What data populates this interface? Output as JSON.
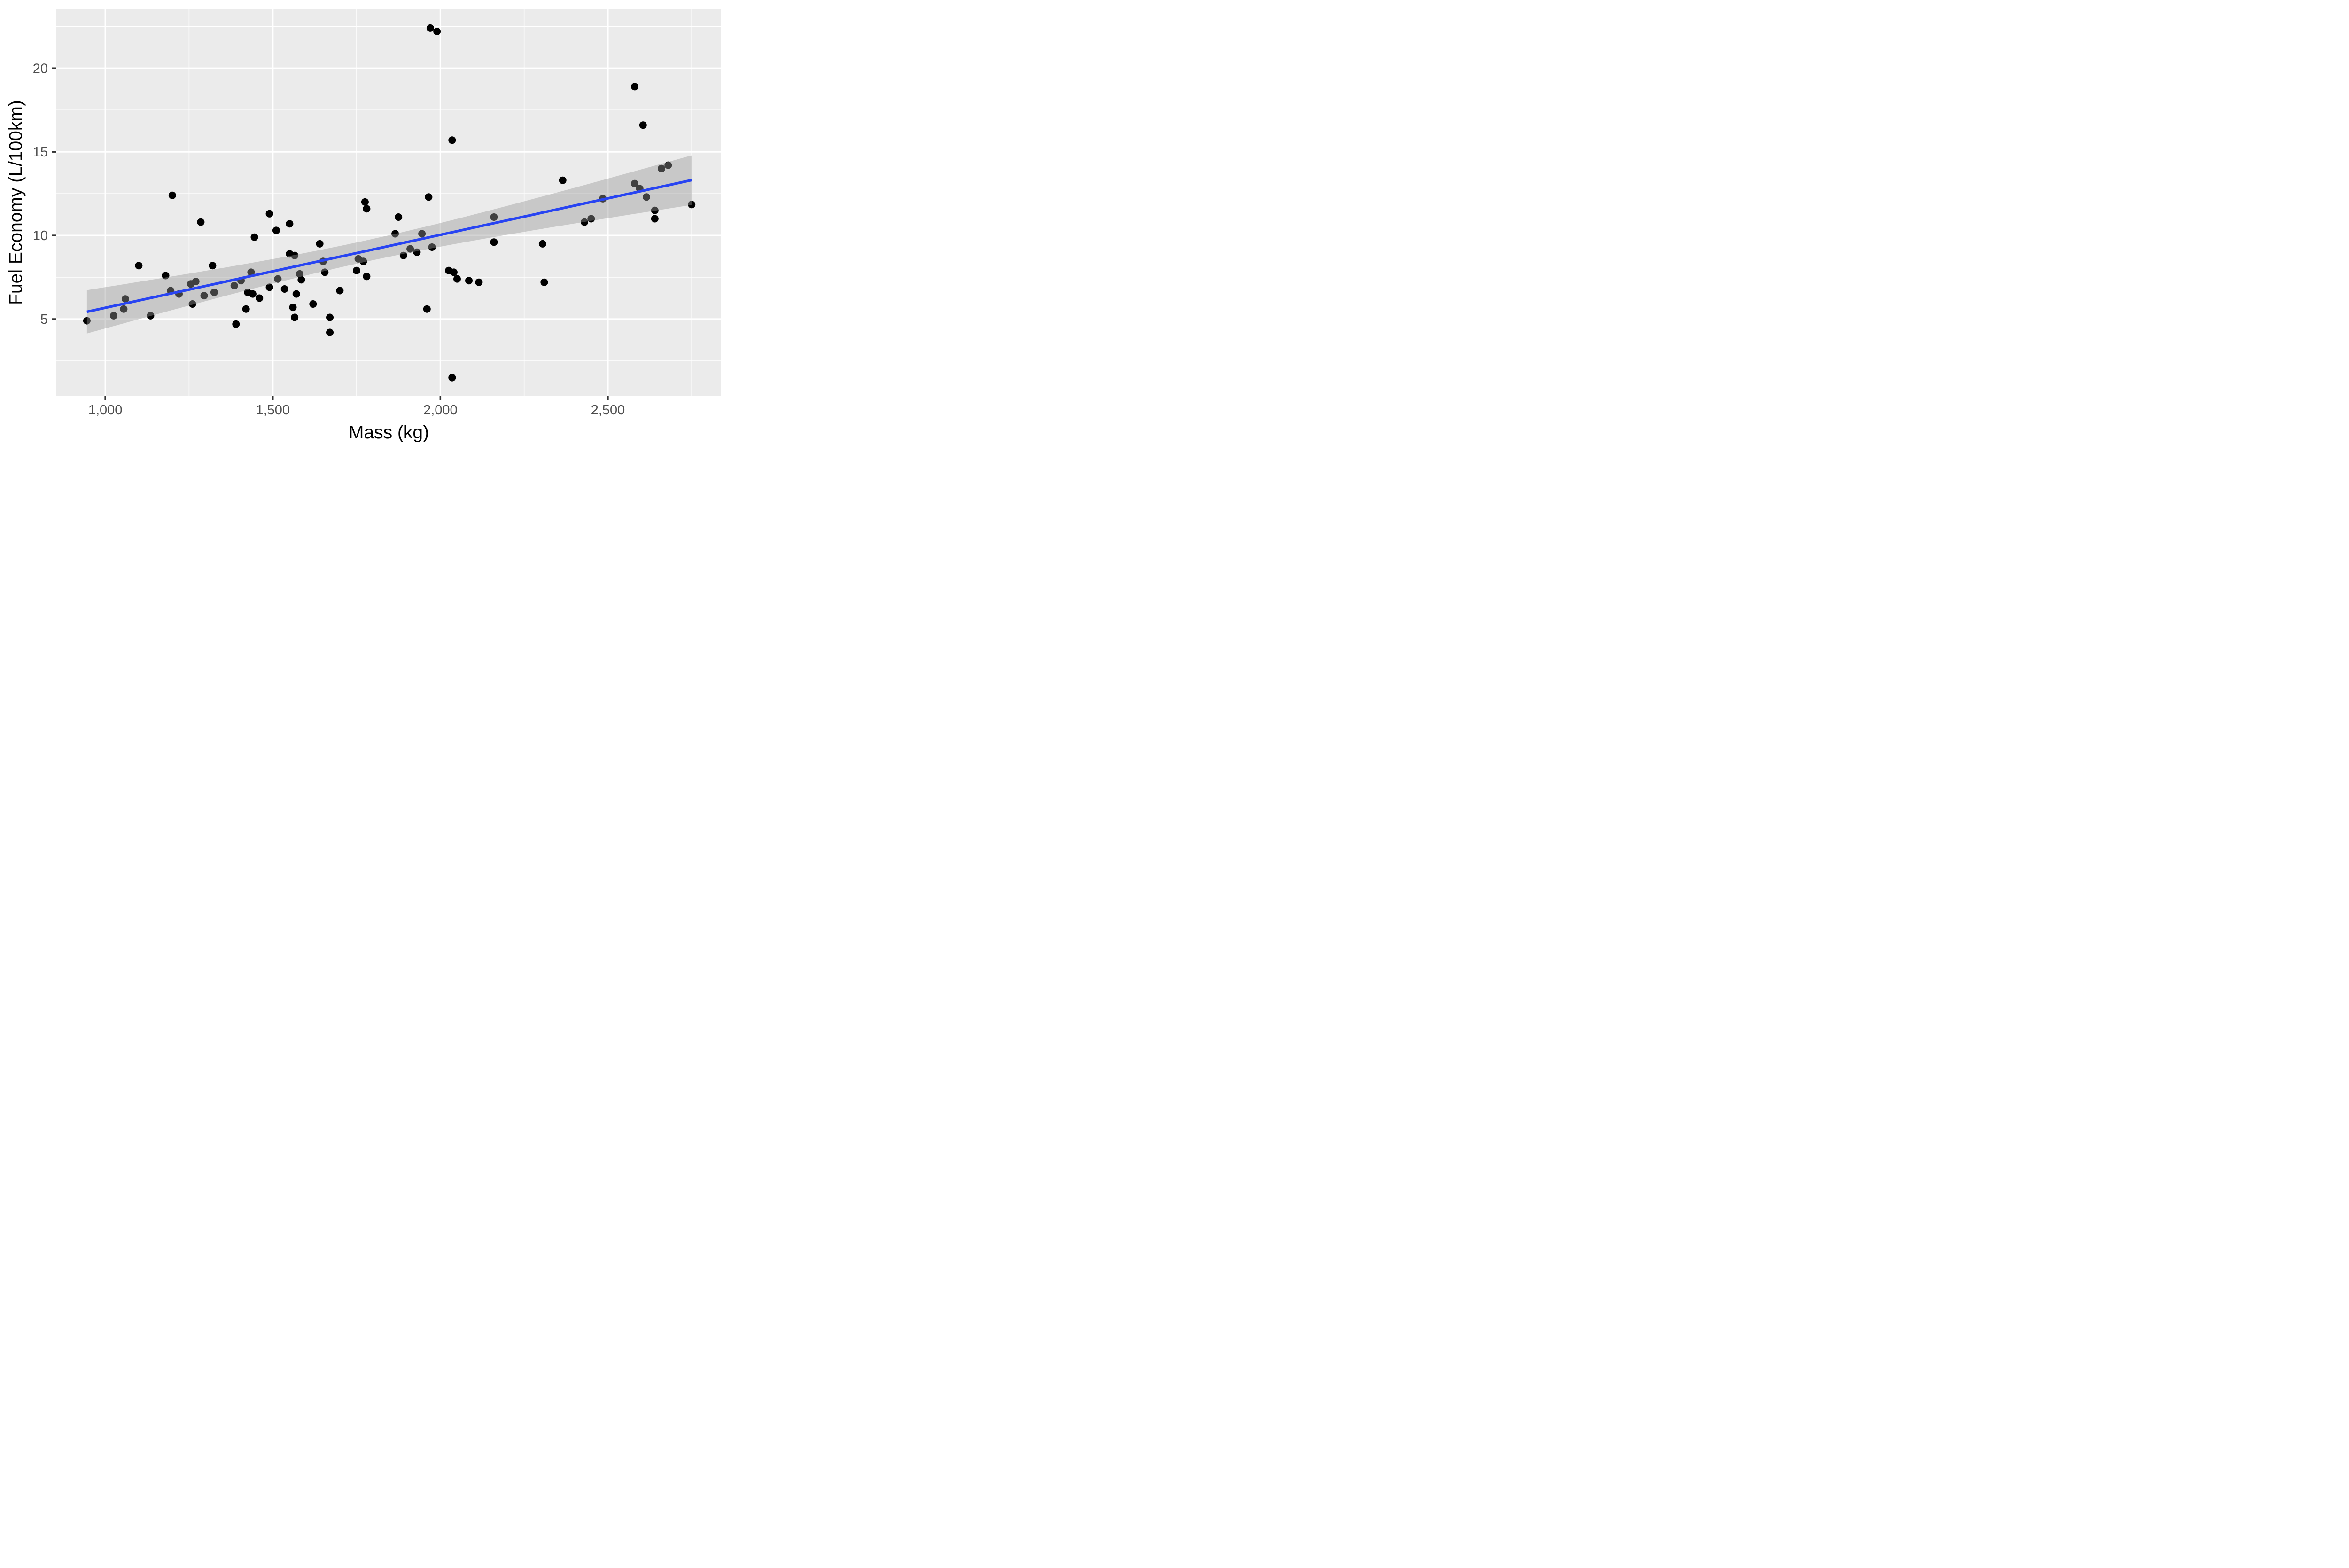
{
  "chart_data": {
    "type": "scatter",
    "title": "",
    "xlabel": "Mass (kg)",
    "ylabel": "Fuel Economy (L/100km)",
    "legend_position": "none",
    "grid": "major-minor-white-on-gray",
    "x_axis": {
      "lim": [
        854,
        2838
      ],
      "major_ticks": [
        {
          "v": 1000,
          "label": "1,000"
        },
        {
          "v": 1500,
          "label": "1,500"
        },
        {
          "v": 2000,
          "label": "2,000"
        },
        {
          "v": 2500,
          "label": "2,500"
        }
      ],
      "minor_ticks": [
        1250,
        1750,
        2250,
        2750
      ]
    },
    "y_axis": {
      "lim": [
        0.42,
        23.52
      ],
      "major_ticks": [
        {
          "v": 5,
          "label": "5"
        },
        {
          "v": 10,
          "label": "10"
        },
        {
          "v": 15,
          "label": "15"
        },
        {
          "v": 20,
          "label": "20"
        }
      ],
      "minor_ticks": [
        2.5,
        7.5,
        12.5,
        17.5,
        22.5
      ]
    },
    "points": [
      [
        945,
        4.9
      ],
      [
        1025,
        5.2
      ],
      [
        1055,
        5.6
      ],
      [
        1060,
        6.2
      ],
      [
        1100,
        8.2
      ],
      [
        1135,
        5.2
      ],
      [
        1180,
        7.6
      ],
      [
        1195,
        6.7
      ],
      [
        1200,
        12.4
      ],
      [
        1220,
        6.5
      ],
      [
        1255,
        7.1
      ],
      [
        1270,
        7.25
      ],
      [
        1260,
        5.9
      ],
      [
        1285,
        10.8
      ],
      [
        1295,
        6.4
      ],
      [
        1325,
        6.6
      ],
      [
        1320,
        8.2
      ],
      [
        1385,
        7.0
      ],
      [
        1390,
        4.7
      ],
      [
        1405,
        7.3
      ],
      [
        1420,
        5.6
      ],
      [
        1425,
        6.6
      ],
      [
        1440,
        6.5
      ],
      [
        1435,
        7.8
      ],
      [
        1445,
        9.9
      ],
      [
        1460,
        6.25
      ],
      [
        1490,
        11.3
      ],
      [
        1490,
        6.9
      ],
      [
        1510,
        10.3
      ],
      [
        1515,
        7.4
      ],
      [
        1535,
        6.8
      ],
      [
        1550,
        10.7
      ],
      [
        1550,
        8.9
      ],
      [
        1565,
        8.8
      ],
      [
        1560,
        5.7
      ],
      [
        1565,
        5.1
      ],
      [
        1570,
        6.5
      ],
      [
        1580,
        7.7
      ],
      [
        1585,
        7.35
      ],
      [
        1620,
        5.9
      ],
      [
        1640,
        9.5
      ],
      [
        1650,
        8.45
      ],
      [
        1655,
        7.8
      ],
      [
        1670,
        5.1
      ],
      [
        1670,
        4.2
      ],
      [
        1700,
        6.7
      ],
      [
        1755,
        8.6
      ],
      [
        1770,
        8.45
      ],
      [
        1750,
        7.9
      ],
      [
        1780,
        7.55
      ],
      [
        1775,
        12.0
      ],
      [
        1780,
        11.6
      ],
      [
        1865,
        10.1
      ],
      [
        1875,
        11.1
      ],
      [
        1890,
        8.8
      ],
      [
        1910,
        9.2
      ],
      [
        1930,
        9.0
      ],
      [
        1945,
        10.1
      ],
      [
        1960,
        5.6
      ],
      [
        1965,
        12.3
      ],
      [
        1975,
        9.3
      ],
      [
        1970,
        22.4
      ],
      [
        1990,
        22.2
      ],
      [
        2025,
        7.9
      ],
      [
        2040,
        7.8
      ],
      [
        2035,
        15.7
      ],
      [
        2035,
        1.5
      ],
      [
        2050,
        7.4
      ],
      [
        2085,
        7.3
      ],
      [
        2115,
        7.2
      ],
      [
        2160,
        11.1
      ],
      [
        2160,
        9.6
      ],
      [
        2305,
        9.5
      ],
      [
        2310,
        7.2
      ],
      [
        2365,
        13.3
      ],
      [
        2430,
        10.8
      ],
      [
        2450,
        11.0
      ],
      [
        2485,
        12.2
      ],
      [
        2580,
        18.9
      ],
      [
        2605,
        16.6
      ],
      [
        2580,
        13.1
      ],
      [
        2595,
        12.8
      ],
      [
        2615,
        12.3
      ],
      [
        2660,
        14.0
      ],
      [
        2680,
        14.2
      ],
      [
        2640,
        11.5
      ],
      [
        2640,
        11.0
      ],
      [
        2750,
        11.85
      ]
    ],
    "smooth": {
      "method": "lm",
      "ci_t": 2.0,
      "band_samples": 40
    }
  },
  "style": {
    "panel_bg": "#EBEBEB",
    "grid_color": "#FFFFFF",
    "grid_major_width": 3.2,
    "grid_minor_width": 1.5,
    "point_color": "#000000",
    "point_radius": 8,
    "band_fill": "#999999",
    "band_opacity": 0.42,
    "line_color": "#2844F2",
    "line_width": 5.5,
    "tick_mark_color": "#333333",
    "tick_mark_length": 10,
    "tick_mark_width": 3.5,
    "tick_label_color": "#4D4D4D",
    "tick_label_size": 29
  }
}
